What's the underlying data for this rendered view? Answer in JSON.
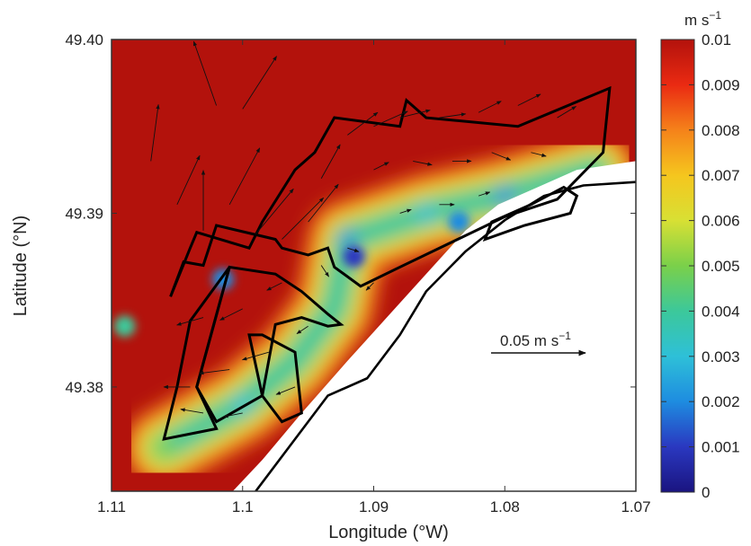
{
  "chart_data": {
    "type": "heatmap",
    "title": "",
    "xlabel": "Longitude (°W)",
    "ylabel": "Latitude (°N)",
    "xlim": [
      1.11,
      1.07
    ],
    "ylim": [
      49.374,
      49.4
    ],
    "x_ticks": [
      "1.11",
      "1.1",
      "1.09",
      "1.08",
      "1.07"
    ],
    "x_tick_values": [
      1.11,
      1.1,
      1.09,
      1.08,
      1.07
    ],
    "y_ticks": [
      "49.40",
      "49.39",
      "49.38"
    ],
    "y_tick_values": [
      49.4,
      49.39,
      49.38
    ],
    "colorbar": {
      "unit_base": "m s",
      "unit_exp": "−1",
      "min": 0,
      "max": 0.01,
      "tick_labels": [
        "0.01",
        "0.009",
        "0.008",
        "0.007",
        "0.006",
        "0.005",
        "0.004",
        "0.003",
        "0.002",
        "0.001",
        "0"
      ],
      "tick_values": [
        0.01,
        0.009,
        0.008,
        0.007,
        0.006,
        0.005,
        0.004,
        0.003,
        0.002,
        0.001,
        0
      ],
      "colormap": [
        "#1a1480",
        "#2a38c0",
        "#1e8ce0",
        "#2ec0d8",
        "#3cc89a",
        "#7ad04a",
        "#d8e034",
        "#f5c61e",
        "#f5821a",
        "#ea2a12",
        "#b3120c"
      ]
    },
    "background_speed": 0.0098,
    "jet": [
      {
        "lon": 1.106,
        "lat": 49.3765,
        "speed": 0.0045
      },
      {
        "lon": 1.1,
        "lat": 49.379,
        "speed": 0.003
      },
      {
        "lon": 1.096,
        "lat": 49.3815,
        "speed": 0.0035
      },
      {
        "lon": 1.093,
        "lat": 49.3845,
        "speed": 0.004
      },
      {
        "lon": 1.092,
        "lat": 49.3885,
        "speed": 0.002
      },
      {
        "lon": 1.086,
        "lat": 49.39,
        "speed": 0.003
      },
      {
        "lon": 1.08,
        "lat": 49.391,
        "speed": 0.002
      },
      {
        "lon": 1.073,
        "lat": 49.3925,
        "speed": 0.004
      }
    ],
    "low_spots": [
      {
        "lon": 1.0915,
        "lat": 49.3875,
        "speed": 0.001
      },
      {
        "lon": 1.0835,
        "lat": 49.3895,
        "speed": 0.0015
      },
      {
        "lon": 1.1015,
        "lat": 49.3862,
        "speed": 0.002
      },
      {
        "lon": 1.109,
        "lat": 49.3835,
        "speed": 0.004
      }
    ],
    "coastline": [
      [
        1.099,
        49.374
      ],
      [
        1.0965,
        49.3765
      ],
      [
        1.0935,
        49.3795
      ],
      [
        1.0905,
        49.3805
      ],
      [
        1.088,
        49.383
      ],
      [
        1.086,
        49.3855
      ],
      [
        1.083,
        49.3878
      ],
      [
        1.08,
        49.3896
      ],
      [
        1.077,
        49.391
      ],
      [
        1.074,
        49.3916
      ],
      [
        1.07,
        49.3918
      ]
    ],
    "land_edge": [
      [
        1.101,
        49.3738
      ],
      [
        1.0985,
        49.3758
      ],
      [
        1.0955,
        49.3785
      ],
      [
        1.092,
        49.3815
      ],
      [
        1.089,
        49.384
      ],
      [
        1.086,
        49.3865
      ],
      [
        1.083,
        49.389
      ],
      [
        1.0805,
        49.3905
      ],
      [
        1.0775,
        49.3915
      ],
      [
        1.0745,
        49.3925
      ],
      [
        1.07,
        49.393
      ]
    ],
    "regions": [
      [
        [
          1.1055,
          49.3852
        ],
        [
          1.1045,
          49.3872
        ],
        [
          1.103,
          49.387
        ],
        [
          1.102,
          49.3893
        ],
        [
          1.0975,
          49.3885
        ],
        [
          1.097,
          49.388
        ],
        [
          1.095,
          49.3876
        ],
        [
          1.0935,
          49.388
        ],
        [
          1.093,
          49.3869
        ],
        [
          1.091,
          49.3858
        ],
        [
          1.088,
          49.3869
        ],
        [
          1.08,
          49.3898
        ],
        [
          1.076,
          49.3908
        ],
        [
          1.0725,
          49.3935
        ],
        [
          1.072,
          49.3972
        ],
        [
          1.079,
          49.395
        ],
        [
          1.086,
          49.3955
        ],
        [
          1.0875,
          49.3965
        ],
        [
          1.088,
          49.395
        ],
        [
          1.093,
          49.3955
        ],
        [
          1.0945,
          49.3935
        ],
        [
          1.096,
          49.3925
        ],
        [
          1.0985,
          49.3895
        ],
        [
          1.0995,
          49.388
        ],
        [
          1.1035,
          49.3889
        ],
        [
          1.104,
          49.388
        ],
        [
          1.1055,
          49.3852
        ]
      ],
      [
        [
          1.101,
          49.3869
        ],
        [
          1.0975,
          49.3865
        ],
        [
          1.0955,
          49.3855
        ],
        [
          1.0935,
          49.3842
        ],
        [
          1.0925,
          49.3836
        ],
        [
          1.0935,
          49.3835
        ],
        [
          1.0955,
          49.384
        ],
        [
          1.0975,
          49.3836
        ],
        [
          1.0985,
          49.3795
        ],
        [
          1.102,
          49.378
        ],
        [
          1.1035,
          49.38
        ],
        [
          1.101,
          49.3869
        ]
      ],
      [
        [
          1.102,
          49.3776
        ],
        [
          1.106,
          49.377
        ],
        [
          1.105,
          49.38
        ],
        [
          1.104,
          49.3838
        ],
        [
          1.101,
          49.3869
        ],
        [
          1.1035,
          49.38
        ],
        [
          1.102,
          49.3776
        ]
      ],
      [
        [
          1.0995,
          49.383
        ],
        [
          1.0985,
          49.3795
        ],
        [
          1.097,
          49.378
        ],
        [
          1.0955,
          49.3785
        ],
        [
          1.096,
          49.382
        ],
        [
          1.0985,
          49.383
        ],
        [
          1.0995,
          49.383
        ]
      ],
      [
        [
          1.0815,
          49.3885
        ],
        [
          1.081,
          49.3895
        ],
        [
          1.078,
          49.3905
        ],
        [
          1.0755,
          49.3915
        ],
        [
          1.0745,
          49.391
        ],
        [
          1.075,
          49.39
        ],
        [
          1.0785,
          49.3893
        ],
        [
          1.0815,
          49.3885
        ]
      ]
    ],
    "vector_scale": {
      "label_base": "0.05 m s",
      "label_exp": "−1",
      "value": 0.05
    },
    "vectors": [
      {
        "lon": 1.102,
        "lat": 49.3962,
        "u": -0.012,
        "v": 0.034
      },
      {
        "lon": 1.1,
        "lat": 49.396,
        "u": 0.018,
        "v": 0.028
      },
      {
        "lon": 1.107,
        "lat": 49.393,
        "u": 0.004,
        "v": 0.03
      },
      {
        "lon": 1.105,
        "lat": 49.3905,
        "u": 0.012,
        "v": 0.026
      },
      {
        "lon": 1.103,
        "lat": 49.389,
        "u": 0.0,
        "v": 0.032
      },
      {
        "lon": 1.101,
        "lat": 49.3905,
        "u": 0.016,
        "v": 0.03
      },
      {
        "lon": 1.099,
        "lat": 49.3888,
        "u": 0.02,
        "v": 0.024
      },
      {
        "lon": 1.097,
        "lat": 49.3885,
        "u": 0.022,
        "v": 0.022
      },
      {
        "lon": 1.095,
        "lat": 49.3895,
        "u": 0.016,
        "v": 0.02
      },
      {
        "lon": 1.094,
        "lat": 49.392,
        "u": 0.01,
        "v": 0.018
      },
      {
        "lon": 1.092,
        "lat": 49.3945,
        "u": 0.016,
        "v": 0.012
      },
      {
        "lon": 1.09,
        "lat": 49.395,
        "u": 0.018,
        "v": 0.008
      },
      {
        "lon": 1.088,
        "lat": 49.3955,
        "u": 0.016,
        "v": 0.004
      },
      {
        "lon": 1.085,
        "lat": 49.3955,
        "u": 0.014,
        "v": 0.002
      },
      {
        "lon": 1.082,
        "lat": 49.3958,
        "u": 0.012,
        "v": 0.006
      },
      {
        "lon": 1.079,
        "lat": 49.3962,
        "u": 0.012,
        "v": 0.006
      },
      {
        "lon": 1.076,
        "lat": 49.3955,
        "u": 0.01,
        "v": 0.006
      },
      {
        "lon": 1.087,
        "lat": 49.393,
        "u": 0.01,
        "v": -0.002
      },
      {
        "lon": 1.084,
        "lat": 49.393,
        "u": 0.01,
        "v": 0.0
      },
      {
        "lon": 1.081,
        "lat": 49.3935,
        "u": 0.01,
        "v": -0.004
      },
      {
        "lon": 1.078,
        "lat": 49.3935,
        "u": 0.008,
        "v": -0.002
      },
      {
        "lon": 1.09,
        "lat": 49.3925,
        "u": 0.008,
        "v": 0.004
      },
      {
        "lon": 1.088,
        "lat": 49.39,
        "u": 0.006,
        "v": 0.002
      },
      {
        "lon": 1.085,
        "lat": 49.3905,
        "u": 0.008,
        "v": 0.0
      },
      {
        "lon": 1.082,
        "lat": 49.391,
        "u": 0.006,
        "v": 0.002
      },
      {
        "lon": 1.092,
        "lat": 49.388,
        "u": 0.006,
        "v": -0.002
      },
      {
        "lon": 1.094,
        "lat": 49.387,
        "u": 0.004,
        "v": -0.006
      },
      {
        "lon": 1.097,
        "lat": 49.386,
        "u": -0.008,
        "v": -0.004
      },
      {
        "lon": 1.1,
        "lat": 49.3845,
        "u": -0.012,
        "v": -0.006
      },
      {
        "lon": 1.103,
        "lat": 49.384,
        "u": -0.014,
        "v": -0.004
      },
      {
        "lon": 1.098,
        "lat": 49.382,
        "u": -0.014,
        "v": -0.004
      },
      {
        "lon": 1.101,
        "lat": 49.381,
        "u": -0.016,
        "v": -0.002
      },
      {
        "lon": 1.104,
        "lat": 49.38,
        "u": -0.014,
        "v": 0.0
      },
      {
        "lon": 1.096,
        "lat": 49.38,
        "u": -0.01,
        "v": -0.004
      },
      {
        "lon": 1.103,
        "lat": 49.3785,
        "u": -0.012,
        "v": 0.002
      },
      {
        "lon": 1.1,
        "lat": 49.3785,
        "u": -0.01,
        "v": -0.002
      },
      {
        "lon": 1.095,
        "lat": 49.3835,
        "u": -0.006,
        "v": -0.004
      },
      {
        "lon": 1.09,
        "lat": 49.386,
        "u": -0.004,
        "v": -0.004
      }
    ]
  }
}
